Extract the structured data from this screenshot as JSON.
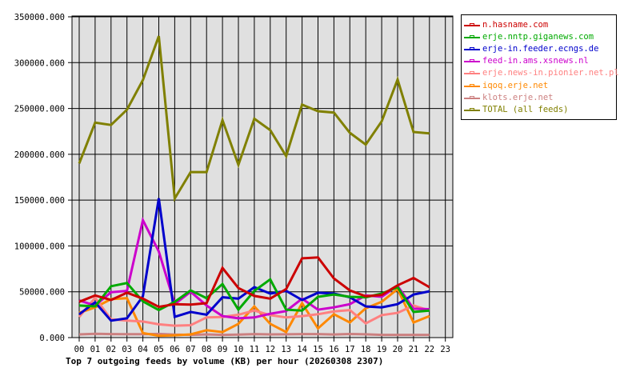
{
  "chart_data": {
    "type": "line",
    "title": "Top 7 outgoing feeds by volume (KB) per hour (20260308 2307)",
    "xlabel": "",
    "ylabel": "",
    "ylim": [
      0,
      350000
    ],
    "yticks": [
      "0.000",
      "50000.000",
      "100000.000",
      "150000.000",
      "200000.000",
      "250000.000",
      "300000.000",
      "350000.000"
    ],
    "x": [
      "00",
      "01",
      "02",
      "03",
      "04",
      "05",
      "06",
      "07",
      "08",
      "09",
      "10",
      "11",
      "12",
      "13",
      "14",
      "15",
      "16",
      "17",
      "18",
      "19",
      "20",
      "21",
      "22",
      "23"
    ],
    "grid": true,
    "legend_position": "right",
    "series": [
      {
        "name": "n.hasname.com",
        "color": "#cc0000",
        "values": [
          39000,
          46000,
          41000,
          49000,
          42500,
          33500,
          36500,
          36000,
          37500,
          76000,
          54000,
          45500,
          42500,
          53000,
          86500,
          87500,
          64500,
          51500,
          45000,
          46500,
          57000,
          65000,
          55000
        ]
      },
      {
        "name": "erje.nntp.giganews.com",
        "color": "#00aa00",
        "values": [
          35000,
          34000,
          56000,
          59500,
          39500,
          30000,
          39000,
          51500,
          43000,
          58500,
          30500,
          51000,
          63500,
          30500,
          29500,
          44500,
          47000,
          44500,
          44000,
          48000,
          55000,
          28000,
          29500
        ]
      },
      {
        "name": "erje-in.feeder.ecngs.de",
        "color": "#0000cc",
        "values": [
          25500,
          38500,
          18500,
          21000,
          45000,
          152000,
          22700,
          28000,
          25000,
          44000,
          42500,
          55000,
          48000,
          51000,
          41000,
          49000,
          48000,
          44000,
          34000,
          33000,
          36500,
          47000,
          50500
        ]
      },
      {
        "name": "feed-in.ams.xsnews.nl",
        "color": "#cc00cc",
        "values": [
          40500,
          35000,
          49500,
          51000,
          128000,
          94000,
          36600,
          50000,
          35000,
          23500,
          21000,
          22000,
          26000,
          29000,
          42500,
          30500,
          33000,
          36500,
          46000,
          44500,
          56500,
          31500,
          31000
        ]
      },
      {
        "name": "erje.news-in.pionier.net.pl",
        "color": "#ff8080",
        "values": [
          22500,
          43500,
          20000,
          18500,
          17500,
          14500,
          13000,
          13500,
          22000,
          22500,
          25000,
          29500,
          24500,
          22000,
          23500,
          25500,
          28500,
          30000,
          15500,
          24500,
          27000,
          35000,
          29500
        ]
      },
      {
        "name": "iqoq.erje.net",
        "color": "#ff8800",
        "values": [
          27000,
          33000,
          42000,
          43000,
          5000,
          2000,
          2500,
          3500,
          8000,
          6000,
          15000,
          34000,
          15000,
          6000,
          37500,
          10000,
          25500,
          16500,
          32000,
          39000,
          53000,
          16500,
          23500
        ]
      },
      {
        "name": "klots.erje.net",
        "color": "#cc8080",
        "values": [
          3500,
          4200,
          3800,
          3700,
          3700,
          4000,
          3200,
          3000,
          3500,
          3000,
          3200,
          3800,
          3500,
          3600,
          3800,
          3800,
          3400,
          3900,
          3600,
          3000,
          3000,
          3000,
          3000
        ]
      },
      {
        "name": "TOTAL (all feeds)",
        "color": "#808000",
        "values": [
          190000,
          234500,
          232000,
          248700,
          281000,
          329000,
          151800,
          180600,
          180600,
          237300,
          188500,
          238800,
          226300,
          198000,
          254200,
          247000,
          245500,
          223400,
          210600,
          235900,
          281600,
          224300,
          222800
        ]
      }
    ]
  }
}
